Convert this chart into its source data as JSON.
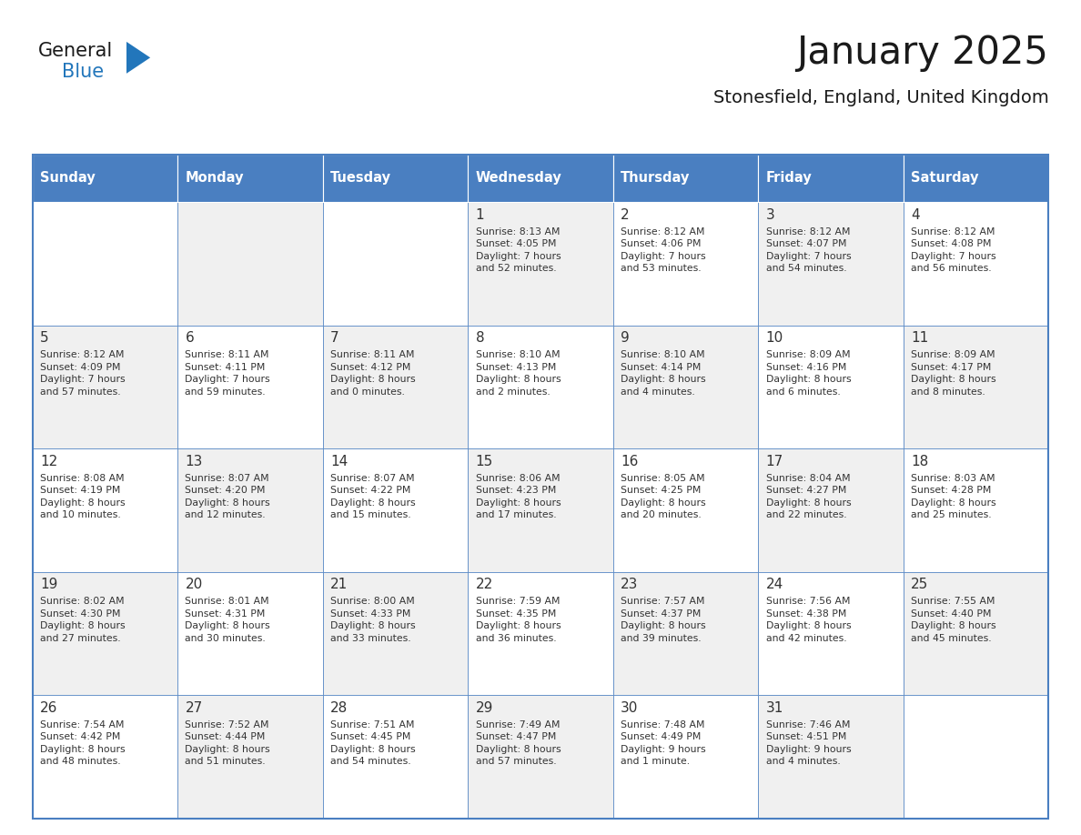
{
  "title": "January 2025",
  "subtitle": "Stonesfield, England, United Kingdom",
  "days_of_week": [
    "Sunday",
    "Monday",
    "Tuesday",
    "Wednesday",
    "Thursday",
    "Friday",
    "Saturday"
  ],
  "header_bg": "#4a7fc1",
  "header_text": "#ffffff",
  "cell_bg_light": "#f0f0f0",
  "cell_bg_white": "#ffffff",
  "border_color": "#4a7fc1",
  "text_color": "#333333",
  "day_number_color": "#333333",
  "logo_general_color": "#1a1a1a",
  "logo_blue_color": "#2276bb",
  "weeks": [
    [
      {
        "day": null,
        "info": null
      },
      {
        "day": null,
        "info": null
      },
      {
        "day": null,
        "info": null
      },
      {
        "day": 1,
        "info": "Sunrise: 8:13 AM\nSunset: 4:05 PM\nDaylight: 7 hours\nand 52 minutes."
      },
      {
        "day": 2,
        "info": "Sunrise: 8:12 AM\nSunset: 4:06 PM\nDaylight: 7 hours\nand 53 minutes."
      },
      {
        "day": 3,
        "info": "Sunrise: 8:12 AM\nSunset: 4:07 PM\nDaylight: 7 hours\nand 54 minutes."
      },
      {
        "day": 4,
        "info": "Sunrise: 8:12 AM\nSunset: 4:08 PM\nDaylight: 7 hours\nand 56 minutes."
      }
    ],
    [
      {
        "day": 5,
        "info": "Sunrise: 8:12 AM\nSunset: 4:09 PM\nDaylight: 7 hours\nand 57 minutes."
      },
      {
        "day": 6,
        "info": "Sunrise: 8:11 AM\nSunset: 4:11 PM\nDaylight: 7 hours\nand 59 minutes."
      },
      {
        "day": 7,
        "info": "Sunrise: 8:11 AM\nSunset: 4:12 PM\nDaylight: 8 hours\nand 0 minutes."
      },
      {
        "day": 8,
        "info": "Sunrise: 8:10 AM\nSunset: 4:13 PM\nDaylight: 8 hours\nand 2 minutes."
      },
      {
        "day": 9,
        "info": "Sunrise: 8:10 AM\nSunset: 4:14 PM\nDaylight: 8 hours\nand 4 minutes."
      },
      {
        "day": 10,
        "info": "Sunrise: 8:09 AM\nSunset: 4:16 PM\nDaylight: 8 hours\nand 6 minutes."
      },
      {
        "day": 11,
        "info": "Sunrise: 8:09 AM\nSunset: 4:17 PM\nDaylight: 8 hours\nand 8 minutes."
      }
    ],
    [
      {
        "day": 12,
        "info": "Sunrise: 8:08 AM\nSunset: 4:19 PM\nDaylight: 8 hours\nand 10 minutes."
      },
      {
        "day": 13,
        "info": "Sunrise: 8:07 AM\nSunset: 4:20 PM\nDaylight: 8 hours\nand 12 minutes."
      },
      {
        "day": 14,
        "info": "Sunrise: 8:07 AM\nSunset: 4:22 PM\nDaylight: 8 hours\nand 15 minutes."
      },
      {
        "day": 15,
        "info": "Sunrise: 8:06 AM\nSunset: 4:23 PM\nDaylight: 8 hours\nand 17 minutes."
      },
      {
        "day": 16,
        "info": "Sunrise: 8:05 AM\nSunset: 4:25 PM\nDaylight: 8 hours\nand 20 minutes."
      },
      {
        "day": 17,
        "info": "Sunrise: 8:04 AM\nSunset: 4:27 PM\nDaylight: 8 hours\nand 22 minutes."
      },
      {
        "day": 18,
        "info": "Sunrise: 8:03 AM\nSunset: 4:28 PM\nDaylight: 8 hours\nand 25 minutes."
      }
    ],
    [
      {
        "day": 19,
        "info": "Sunrise: 8:02 AM\nSunset: 4:30 PM\nDaylight: 8 hours\nand 27 minutes."
      },
      {
        "day": 20,
        "info": "Sunrise: 8:01 AM\nSunset: 4:31 PM\nDaylight: 8 hours\nand 30 minutes."
      },
      {
        "day": 21,
        "info": "Sunrise: 8:00 AM\nSunset: 4:33 PM\nDaylight: 8 hours\nand 33 minutes."
      },
      {
        "day": 22,
        "info": "Sunrise: 7:59 AM\nSunset: 4:35 PM\nDaylight: 8 hours\nand 36 minutes."
      },
      {
        "day": 23,
        "info": "Sunrise: 7:57 AM\nSunset: 4:37 PM\nDaylight: 8 hours\nand 39 minutes."
      },
      {
        "day": 24,
        "info": "Sunrise: 7:56 AM\nSunset: 4:38 PM\nDaylight: 8 hours\nand 42 minutes."
      },
      {
        "day": 25,
        "info": "Sunrise: 7:55 AM\nSunset: 4:40 PM\nDaylight: 8 hours\nand 45 minutes."
      }
    ],
    [
      {
        "day": 26,
        "info": "Sunrise: 7:54 AM\nSunset: 4:42 PM\nDaylight: 8 hours\nand 48 minutes."
      },
      {
        "day": 27,
        "info": "Sunrise: 7:52 AM\nSunset: 4:44 PM\nDaylight: 8 hours\nand 51 minutes."
      },
      {
        "day": 28,
        "info": "Sunrise: 7:51 AM\nSunset: 4:45 PM\nDaylight: 8 hours\nand 54 minutes."
      },
      {
        "day": 29,
        "info": "Sunrise: 7:49 AM\nSunset: 4:47 PM\nDaylight: 8 hours\nand 57 minutes."
      },
      {
        "day": 30,
        "info": "Sunrise: 7:48 AM\nSunset: 4:49 PM\nDaylight: 9 hours\nand 1 minute."
      },
      {
        "day": 31,
        "info": "Sunrise: 7:46 AM\nSunset: 4:51 PM\nDaylight: 9 hours\nand 4 minutes."
      },
      {
        "day": null,
        "info": null
      }
    ]
  ]
}
